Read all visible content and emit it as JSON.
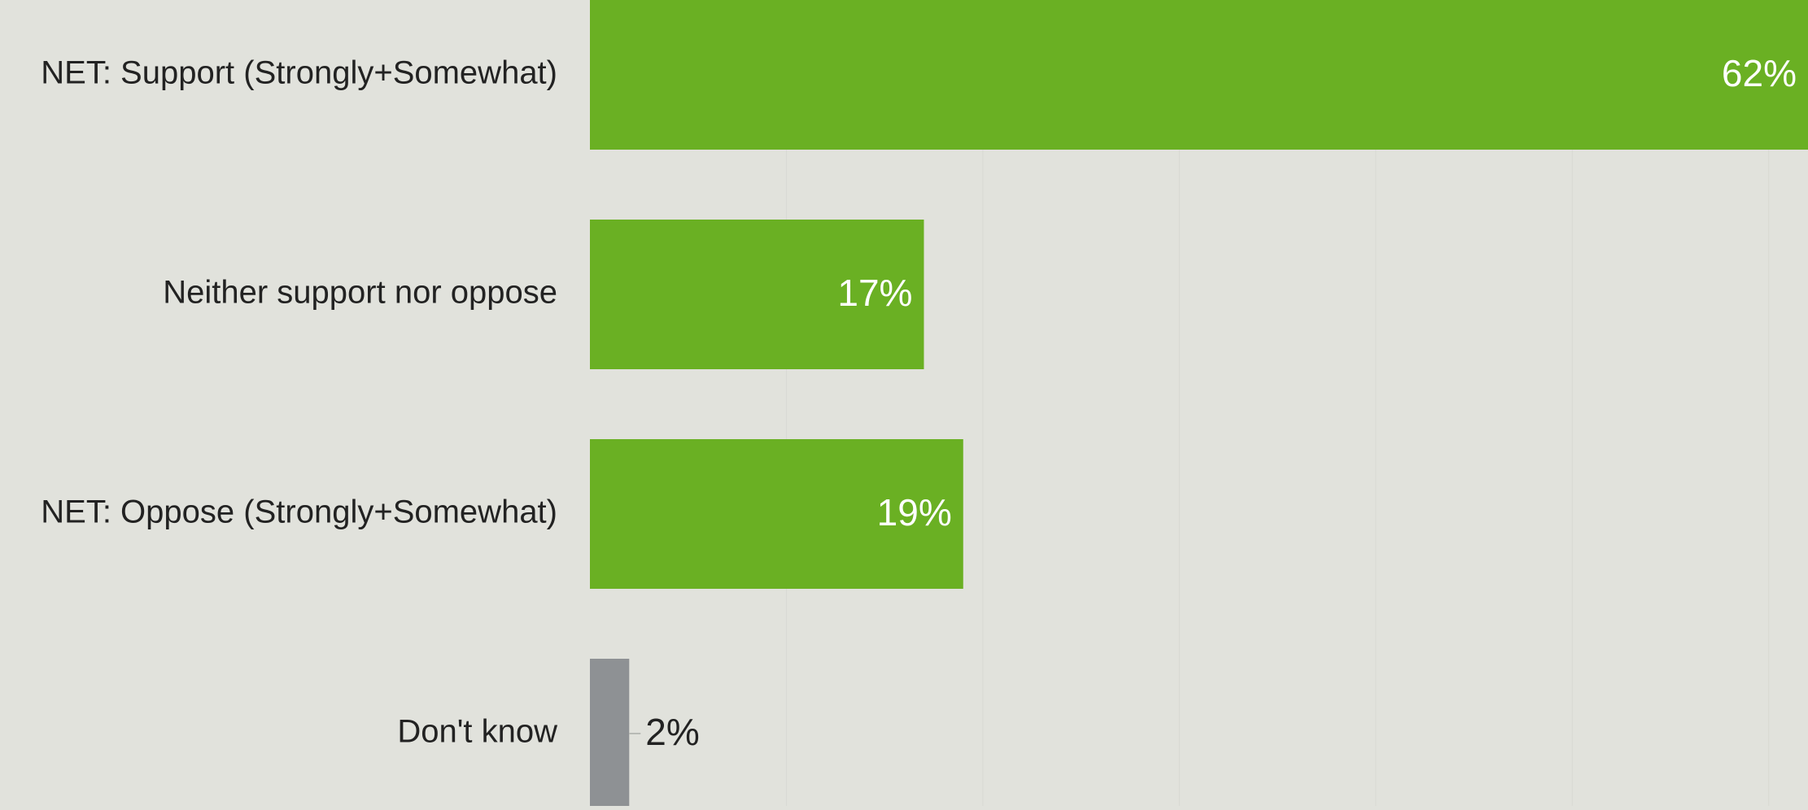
{
  "chart_data": {
    "type": "bar",
    "orientation": "horizontal",
    "categories": [
      "NET: Support (Strongly+Somewhat)",
      "Neither support nor oppose",
      "NET: Oppose (Strongly+Somewhat)",
      "Don't know"
    ],
    "values": [
      62,
      17,
      19,
      2
    ],
    "data_labels": [
      "62%",
      "17%",
      "19%",
      "2%"
    ],
    "bar_colors": [
      "#6ab023",
      "#6ab023",
      "#6ab023",
      "#8e9194"
    ],
    "label_color_inside": "#ffffff",
    "label_color_outside": "#222222",
    "background_color": "#e1e2dc",
    "grid_color": "#d8d9d3",
    "xlim": [
      0,
      62
    ],
    "grid": true,
    "legend": "none",
    "title": "",
    "xlabel": "",
    "ylabel": ""
  }
}
